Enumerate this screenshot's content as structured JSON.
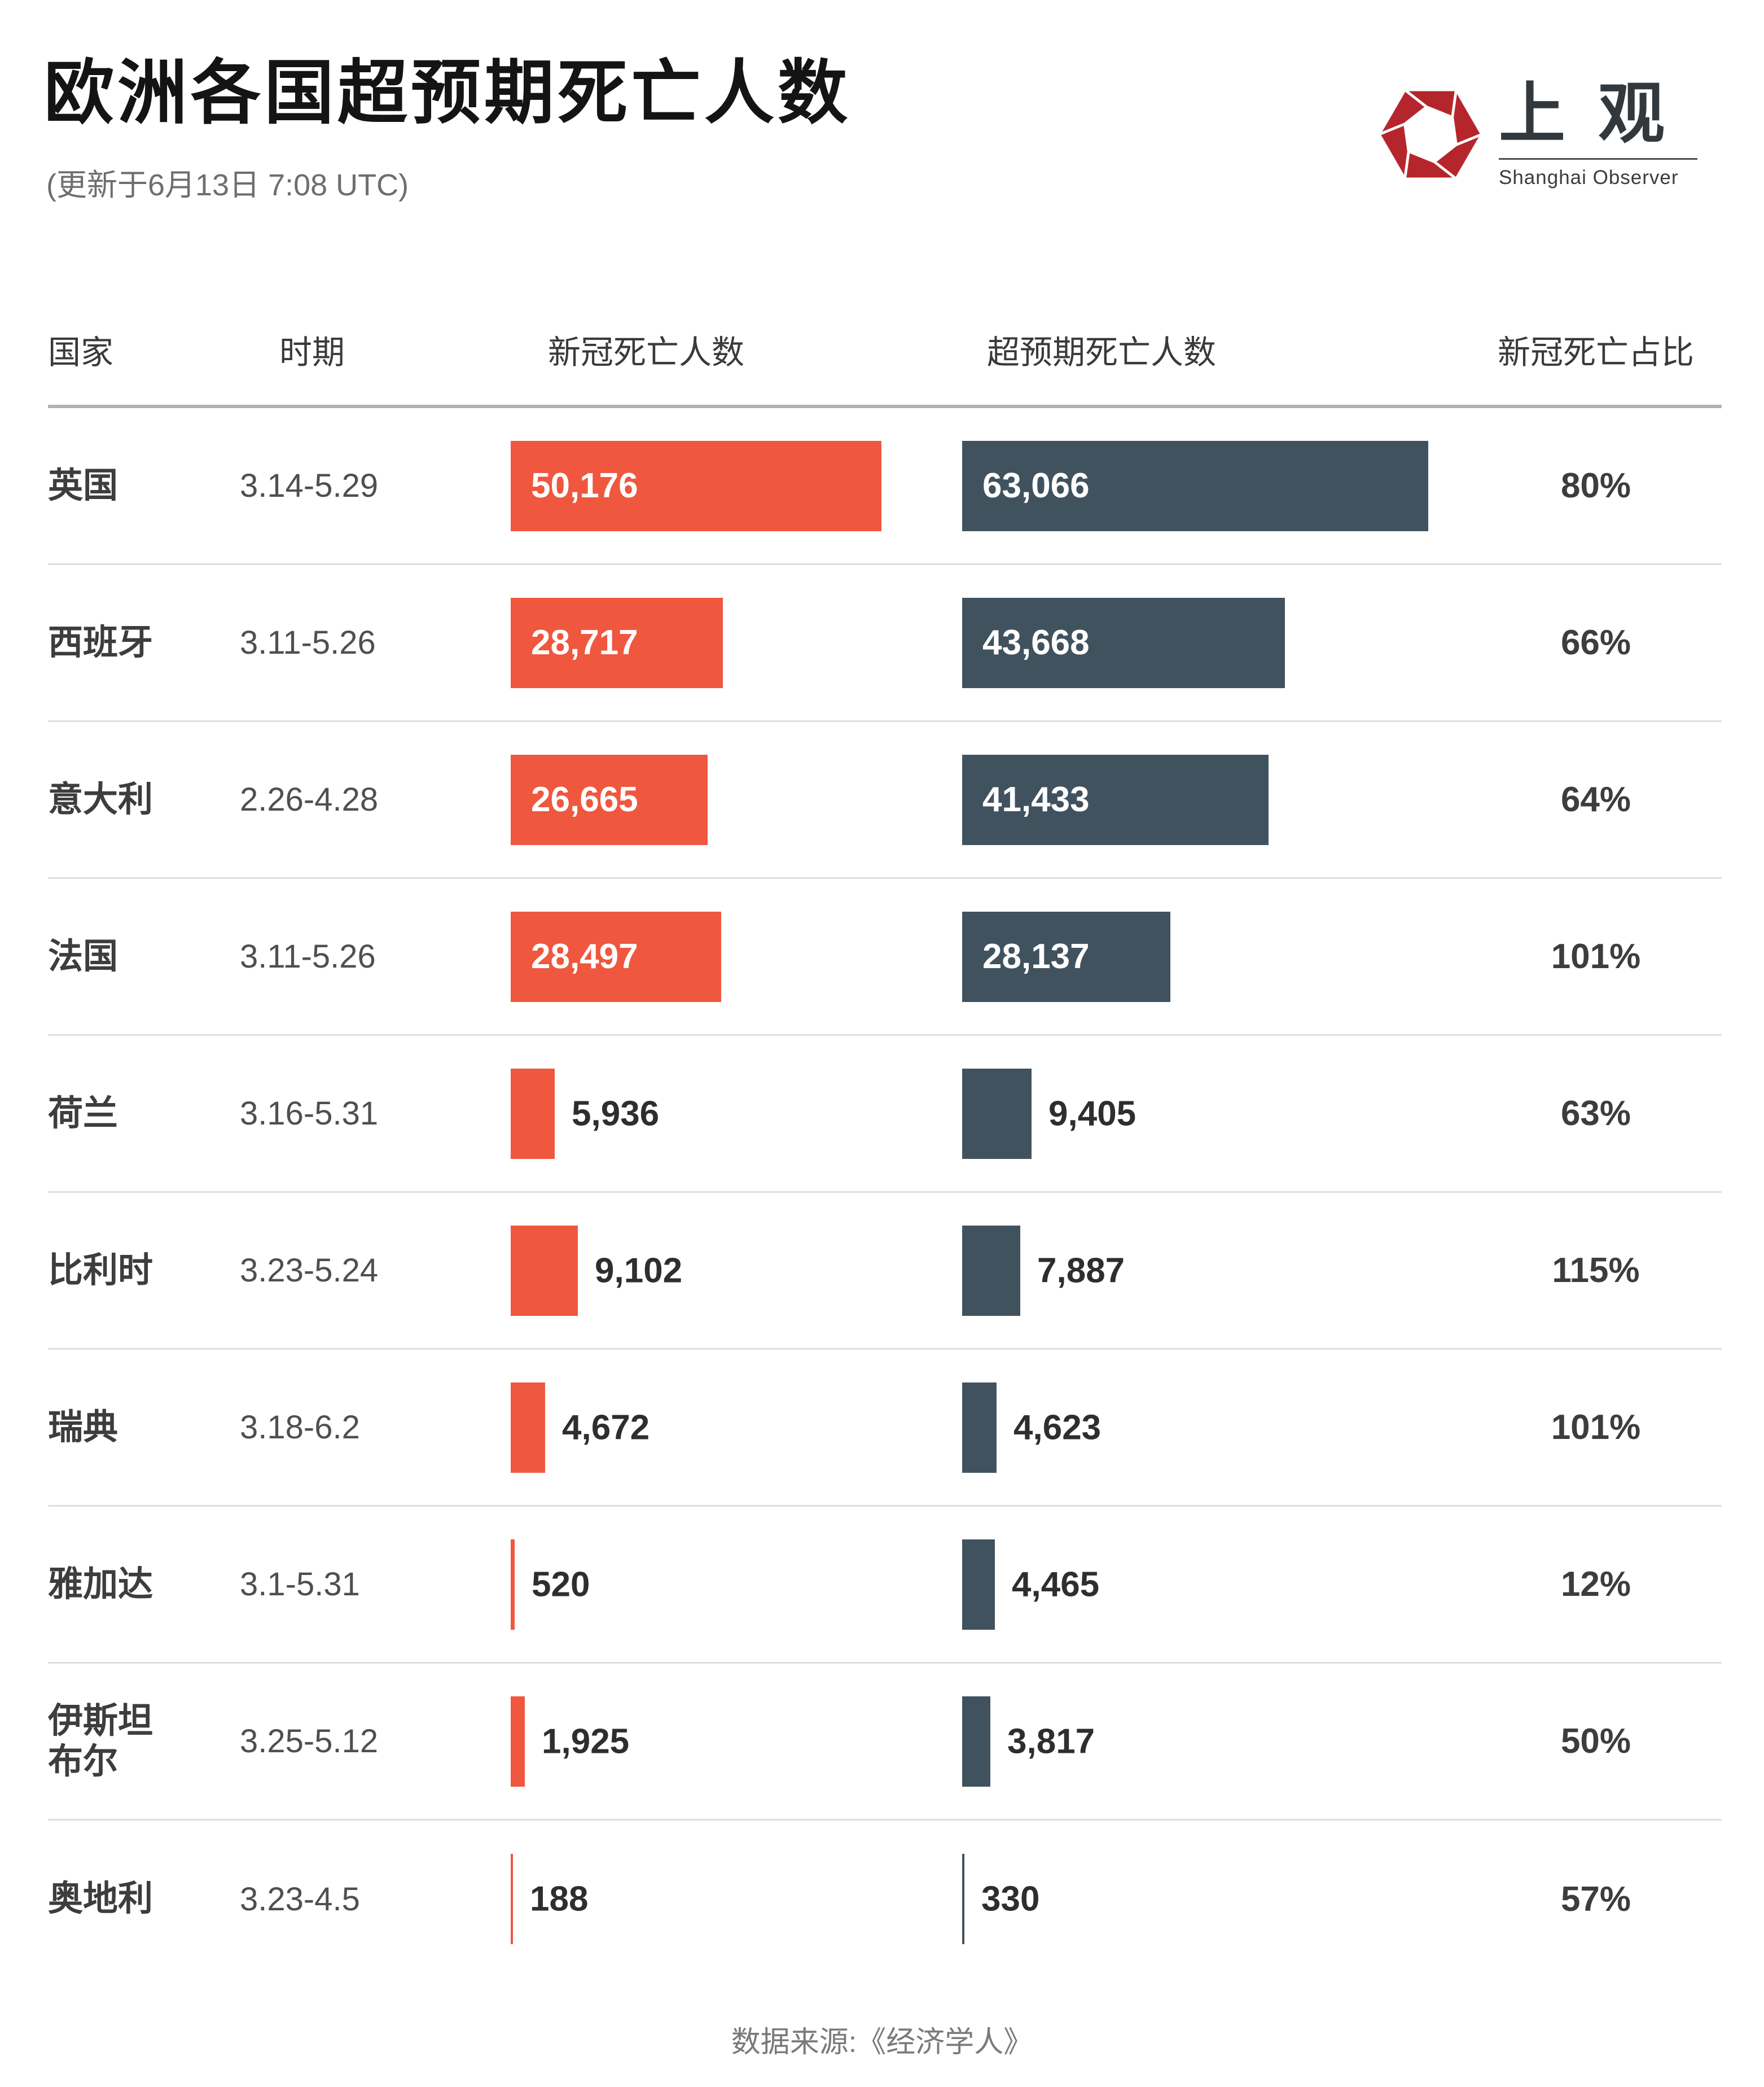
{
  "header": {
    "title": "欧洲各国超预期死亡人数",
    "subtitle": "(更新于6月13日 7:08 UTC)"
  },
  "logo": {
    "name_cn": "上观",
    "name_en": "Shanghai Observer",
    "brand_red": "#b5262c"
  },
  "table": {
    "columns": [
      "国家",
      "时期",
      "新冠死亡人数",
      "超预期死亡人数",
      "新冠死亡占比"
    ]
  },
  "colors": {
    "covid_bar": "#f0573f",
    "excess_bar": "#41525f",
    "inside_label": "#ffffff",
    "outside_label": "#2e2e2e"
  },
  "footer": {
    "source": "数据来源:《经济学人》"
  },
  "chart_data": {
    "type": "bar",
    "orientation": "horizontal",
    "title": "欧洲各国超预期死亡人数",
    "subtitle": "(更新于6月13日 7:08 UTC)",
    "legend_position": "none",
    "grid": false,
    "xlim": [
      0,
      63066
    ],
    "series_names": [
      "新冠死亡人数",
      "超预期死亡人数"
    ],
    "rows": [
      {
        "country": "英国",
        "period": "3.14-5.29",
        "covid_deaths": 50176,
        "covid_label": "50,176",
        "excess_deaths": 63066,
        "excess_label": "63,066",
        "ratio": "80%"
      },
      {
        "country": "西班牙",
        "period": "3.11-5.26",
        "covid_deaths": 28717,
        "covid_label": "28,717",
        "excess_deaths": 43668,
        "excess_label": "43,668",
        "ratio": "66%"
      },
      {
        "country": "意大利",
        "period": "2.26-4.28",
        "covid_deaths": 26665,
        "covid_label": "26,665",
        "excess_deaths": 41433,
        "excess_label": "41,433",
        "ratio": "64%"
      },
      {
        "country": "法国",
        "period": "3.11-5.26",
        "covid_deaths": 28497,
        "covid_label": "28,497",
        "excess_deaths": 28137,
        "excess_label": "28,137",
        "ratio": "101%"
      },
      {
        "country": "荷兰",
        "period": "3.16-5.31",
        "covid_deaths": 5936,
        "covid_label": "5,936",
        "excess_deaths": 9405,
        "excess_label": "9,405",
        "ratio": "63%"
      },
      {
        "country": "比利时",
        "period": "3.23-5.24",
        "covid_deaths": 9102,
        "covid_label": "9,102",
        "excess_deaths": 7887,
        "excess_label": "7,887",
        "ratio": "115%"
      },
      {
        "country": "瑞典",
        "period": "3.18-6.2",
        "covid_deaths": 4672,
        "covid_label": "4,672",
        "excess_deaths": 4623,
        "excess_label": "4,623",
        "ratio": "101%"
      },
      {
        "country": "雅加达",
        "period": "3.1-5.31",
        "covid_deaths": 520,
        "covid_label": "520",
        "excess_deaths": 4465,
        "excess_label": "4,465",
        "ratio": "12%"
      },
      {
        "country": "伊斯坦\n布尔",
        "period": "3.25-5.12",
        "covid_deaths": 1925,
        "covid_label": "1,925",
        "excess_deaths": 3817,
        "excess_label": "3,817",
        "ratio": "50%"
      },
      {
        "country": "奥地利",
        "period": "3.23-4.5",
        "covid_deaths": 188,
        "covid_label": "188",
        "excess_deaths": 330,
        "excess_label": "330",
        "ratio": "57%"
      }
    ]
  }
}
